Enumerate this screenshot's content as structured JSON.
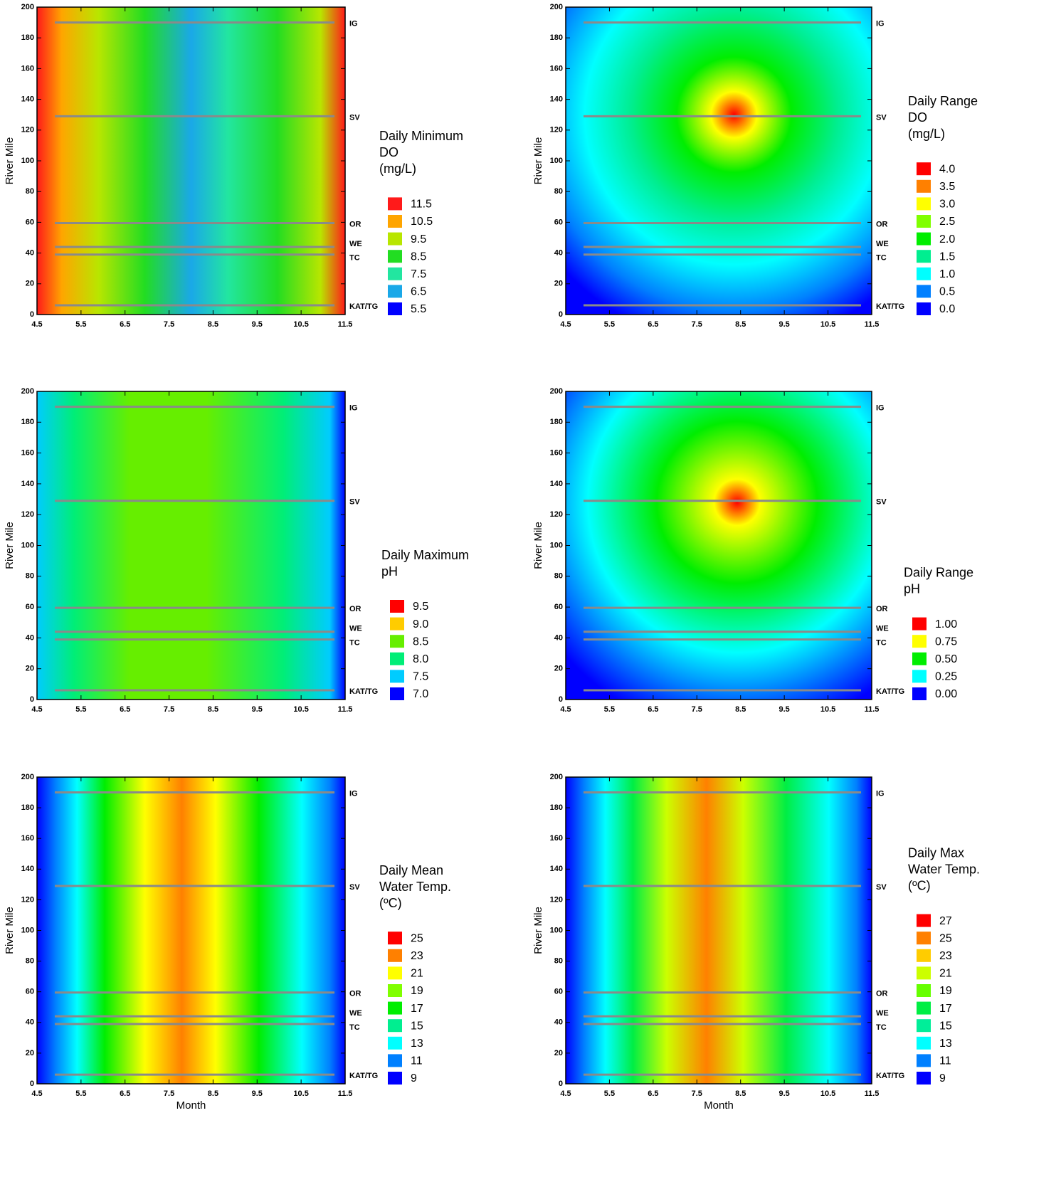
{
  "chart_data": [
    {
      "type": "contour",
      "ylabel": "River Mile",
      "xlim": [
        4.5,
        11.5
      ],
      "xticks": [
        4.5,
        5.5,
        6.5,
        7.5,
        8.5,
        9.5,
        10.5,
        11.5
      ],
      "ylim": [
        0,
        200
      ],
      "yticks": [
        0,
        20,
        40,
        60,
        80,
        100,
        120,
        140,
        160,
        180,
        200
      ],
      "reference_lines": [
        {
          "label": "IG",
          "y": 190
        },
        {
          "label": "SV",
          "y": 129
        },
        {
          "label": "OR",
          "y": 59.5
        },
        {
          "label": "WE",
          "y": 44
        },
        {
          "label": "TC",
          "y": 39
        },
        {
          "label": "KAT/TG",
          "y": 6
        }
      ],
      "legend_title": [
        "Daily Minimum",
        "DO",
        "(mg/L)"
      ],
      "legend": [
        {
          "label": "11.5",
          "color": "#ff1a1a"
        },
        {
          "label": "10.5",
          "color": "#ffa500"
        },
        {
          "label": "9.5",
          "color": "#b8e600"
        },
        {
          "label": "8.5",
          "color": "#22dd22"
        },
        {
          "label": "7.5",
          "color": "#22e6a0"
        },
        {
          "label": "6.5",
          "color": "#1aa8e8"
        },
        {
          "label": "5.5",
          "color": "#0000ff"
        }
      ]
    },
    {
      "type": "contour",
      "ylabel": "River Mile",
      "xlim": [
        4.5,
        11.5
      ],
      "xticks": [
        4.5,
        5.5,
        6.5,
        7.5,
        8.5,
        9.5,
        10.5,
        11.5
      ],
      "ylim": [
        0,
        200
      ],
      "yticks": [
        0,
        20,
        40,
        60,
        80,
        100,
        120,
        140,
        160,
        180,
        200
      ],
      "reference_lines": [
        {
          "label": "IG",
          "y": 190
        },
        {
          "label": "SV",
          "y": 129
        },
        {
          "label": "OR",
          "y": 59.5
        },
        {
          "label": "WE",
          "y": 44
        },
        {
          "label": "TC",
          "y": 39
        },
        {
          "label": "KAT/TG",
          "y": 6
        }
      ],
      "legend_title": [
        "Daily Range",
        "DO",
        "(mg/L)"
      ],
      "legend": [
        {
          "label": "4.0",
          "color": "#ff0000"
        },
        {
          "label": "3.5",
          "color": "#ff8000"
        },
        {
          "label": "3.0",
          "color": "#ffff00"
        },
        {
          "label": "2.5",
          "color": "#80ff00"
        },
        {
          "label": "2.0",
          "color": "#00ee00"
        },
        {
          "label": "1.5",
          "color": "#00ee90"
        },
        {
          "label": "1.0",
          "color": "#00ffff"
        },
        {
          "label": "0.5",
          "color": "#0080ff"
        },
        {
          "label": "0.0",
          "color": "#0000ff"
        }
      ]
    },
    {
      "type": "contour",
      "ylabel": "River Mile",
      "xlim": [
        4.5,
        11.5
      ],
      "xticks": [
        4.5,
        5.5,
        6.5,
        7.5,
        8.5,
        9.5,
        10.5,
        11.5
      ],
      "ylim": [
        0,
        200
      ],
      "yticks": [
        0,
        20,
        40,
        60,
        80,
        100,
        120,
        140,
        160,
        180,
        200
      ],
      "reference_lines": [
        {
          "label": "IG",
          "y": 190
        },
        {
          "label": "SV",
          "y": 129
        },
        {
          "label": "OR",
          "y": 59.5
        },
        {
          "label": "WE",
          "y": 44
        },
        {
          "label": "TC",
          "y": 39
        },
        {
          "label": "KAT/TG",
          "y": 6
        }
      ],
      "legend_title": [
        "Daily Maximum",
        "pH"
      ],
      "legend": [
        {
          "label": "9.5",
          "color": "#ff0000"
        },
        {
          "label": "9.0",
          "color": "#ffcc00"
        },
        {
          "label": "8.5",
          "color": "#66ee00"
        },
        {
          "label": "8.0",
          "color": "#00ee77"
        },
        {
          "label": "7.5",
          "color": "#00ccff"
        },
        {
          "label": "7.0",
          "color": "#0000ff"
        }
      ]
    },
    {
      "type": "contour",
      "ylabel": "River Mile",
      "xlim": [
        4.5,
        11.5
      ],
      "xticks": [
        4.5,
        5.5,
        6.5,
        7.5,
        8.5,
        9.5,
        10.5,
        11.5
      ],
      "ylim": [
        0,
        200
      ],
      "yticks": [
        0,
        20,
        40,
        60,
        80,
        100,
        120,
        140,
        160,
        180,
        200
      ],
      "reference_lines": [
        {
          "label": "IG",
          "y": 190
        },
        {
          "label": "SV",
          "y": 129
        },
        {
          "label": "OR",
          "y": 59.5
        },
        {
          "label": "WE",
          "y": 44
        },
        {
          "label": "TC",
          "y": 39
        },
        {
          "label": "KAT/TG",
          "y": 6
        }
      ],
      "legend_title": [
        "Daily Range",
        "pH"
      ],
      "legend": [
        {
          "label": "1.00",
          "color": "#ff0000"
        },
        {
          "label": "0.75",
          "color": "#ffff00"
        },
        {
          "label": "0.50",
          "color": "#00ee00"
        },
        {
          "label": "0.25",
          "color": "#00ffff"
        },
        {
          "label": "0.00",
          "color": "#0000ff"
        }
      ]
    },
    {
      "type": "contour",
      "ylabel": "River Mile",
      "xlabel": "Month",
      "xlim": [
        4.5,
        11.5
      ],
      "xticks": [
        4.5,
        5.5,
        6.5,
        7.5,
        8.5,
        9.5,
        10.5,
        11.5
      ],
      "ylim": [
        0,
        200
      ],
      "yticks": [
        0,
        20,
        40,
        60,
        80,
        100,
        120,
        140,
        160,
        180,
        200
      ],
      "reference_lines": [
        {
          "label": "IG",
          "y": 190
        },
        {
          "label": "SV",
          "y": 129
        },
        {
          "label": "OR",
          "y": 59.5
        },
        {
          "label": "WE",
          "y": 44
        },
        {
          "label": "TC",
          "y": 39
        },
        {
          "label": "KAT/TG",
          "y": 6
        }
      ],
      "legend_title": [
        "Daily Mean",
        "Water Temp.",
        "(ºC)"
      ],
      "legend": [
        {
          "label": "25",
          "color": "#ff0000"
        },
        {
          "label": "23",
          "color": "#ff8000"
        },
        {
          "label": "21",
          "color": "#ffff00"
        },
        {
          "label": "19",
          "color": "#80ff00"
        },
        {
          "label": "17",
          "color": "#00ee00"
        },
        {
          "label": "15",
          "color": "#00ee90"
        },
        {
          "label": "13",
          "color": "#00ffff"
        },
        {
          "label": "11",
          "color": "#0080ff"
        },
        {
          "label": "9",
          "color": "#0000ff"
        }
      ]
    },
    {
      "type": "contour",
      "ylabel": "River Mile",
      "xlabel": "Month",
      "xlim": [
        4.5,
        11.5
      ],
      "xticks": [
        4.5,
        5.5,
        6.5,
        7.5,
        8.5,
        9.5,
        10.5,
        11.5
      ],
      "ylim": [
        0,
        200
      ],
      "yticks": [
        0,
        20,
        40,
        60,
        80,
        100,
        120,
        140,
        160,
        180,
        200
      ],
      "reference_lines": [
        {
          "label": "IG",
          "y": 190
        },
        {
          "label": "SV",
          "y": 129
        },
        {
          "label": "OR",
          "y": 59.5
        },
        {
          "label": "WE",
          "y": 44
        },
        {
          "label": "TC",
          "y": 39
        },
        {
          "label": "KAT/TG",
          "y": 6
        }
      ],
      "legend_title": [
        "Daily Max",
        "Water Temp.",
        "(ºC)"
      ],
      "legend": [
        {
          "label": "27",
          "color": "#ff0000"
        },
        {
          "label": "25",
          "color": "#ff8000"
        },
        {
          "label": "23",
          "color": "#ffcc00"
        },
        {
          "label": "21",
          "color": "#ccff00"
        },
        {
          "label": "19",
          "color": "#66ff00"
        },
        {
          "label": "17",
          "color": "#00ee44"
        },
        {
          "label": "15",
          "color": "#00ee99"
        },
        {
          "label": "13",
          "color": "#00ffff"
        },
        {
          "label": "11",
          "color": "#0080ff"
        },
        {
          "label": "9",
          "color": "#0000ff"
        }
      ]
    }
  ]
}
